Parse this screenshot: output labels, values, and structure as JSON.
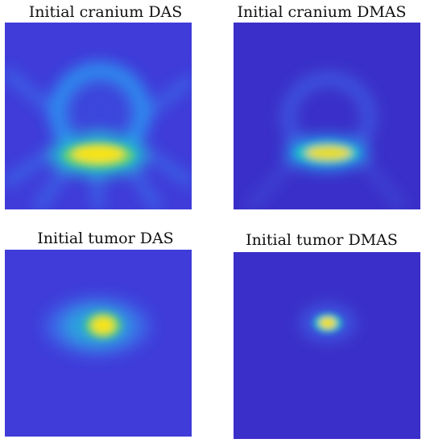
{
  "figure": {
    "panels": [
      {
        "id": "cranium-das",
        "title": "Initial cranium DAS"
      },
      {
        "id": "cranium-dmas",
        "title": "Initial cranium DMAS"
      },
      {
        "id": "tumor-das",
        "title": "Initial tumor DAS"
      },
      {
        "id": "tumor-dmas",
        "title": "Initial tumor DMAS"
      }
    ],
    "colormap": [
      "#3d2fc8",
      "#1f7af0",
      "#16c3c0",
      "#5fd06a",
      "#f6e313"
    ]
  }
}
